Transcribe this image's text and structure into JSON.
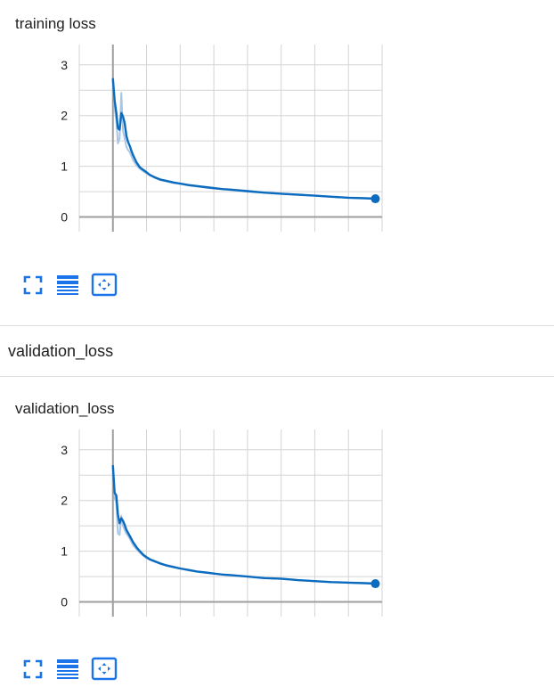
{
  "chart_data": [
    {
      "type": "line",
      "title": "training loss",
      "xlabel": "",
      "ylabel": "",
      "xlim": [
        -20,
        160
      ],
      "ylim": [
        -0.5,
        3.4
      ],
      "xticks": [
        0,
        20,
        40,
        60,
        80,
        100,
        120,
        140
      ],
      "yticks": [
        0,
        1,
        2,
        3
      ],
      "grid": true,
      "series": [
        {
          "role": "smoothed",
          "color": "#0b6bbf",
          "x": [
            0,
            1,
            2,
            3,
            4,
            5,
            6,
            7,
            8,
            9,
            10,
            11,
            12,
            14,
            16,
            18,
            20,
            22,
            25,
            28,
            32,
            36,
            40,
            45,
            50,
            55,
            60,
            65,
            70,
            80,
            90,
            100,
            110,
            120,
            130,
            140,
            150,
            156
          ],
          "y": [
            2.72,
            2.3,
            2.05,
            1.75,
            1.72,
            2.05,
            1.98,
            1.85,
            1.6,
            1.48,
            1.4,
            1.3,
            1.22,
            1.08,
            0.98,
            0.93,
            0.88,
            0.83,
            0.78,
            0.74,
            0.71,
            0.68,
            0.66,
            0.63,
            0.61,
            0.59,
            0.57,
            0.55,
            0.54,
            0.51,
            0.48,
            0.46,
            0.44,
            0.42,
            0.4,
            0.38,
            0.37,
            0.36
          ]
        },
        {
          "role": "raw",
          "color": "#a8c7e6",
          "x": [
            0,
            1,
            2,
            3,
            4,
            5,
            6,
            7,
            8,
            9,
            10,
            11,
            12,
            14,
            16,
            18,
            20,
            22,
            25,
            28,
            32,
            36,
            40,
            45,
            50,
            55,
            60,
            65,
            70,
            80,
            90,
            100,
            110,
            120,
            130,
            140,
            150,
            156
          ],
          "y": [
            2.65,
            2.15,
            1.9,
            1.45,
            1.55,
            2.45,
            1.7,
            1.55,
            1.38,
            1.32,
            1.28,
            1.2,
            1.12,
            1.02,
            0.95,
            0.9,
            0.86,
            0.82,
            0.77,
            0.73,
            0.7,
            0.67,
            0.65,
            0.62,
            0.6,
            0.58,
            0.56,
            0.55,
            0.53,
            0.5,
            0.48,
            0.46,
            0.44,
            0.42,
            0.4,
            0.38,
            0.37,
            0.36
          ]
        }
      ]
    },
    {
      "type": "line",
      "title": "validation_loss",
      "xlabel": "",
      "ylabel": "",
      "xlim": [
        -20,
        160
      ],
      "ylim": [
        -0.5,
        3.4
      ],
      "xticks": [
        0,
        20,
        40,
        60,
        80,
        100,
        120,
        140
      ],
      "yticks": [
        0,
        1,
        2,
        3
      ],
      "grid": true,
      "series": [
        {
          "role": "smoothed",
          "color": "#0b6bbf",
          "x": [
            0,
            1,
            2,
            3,
            4,
            5,
            6,
            7,
            8,
            9,
            10,
            12,
            14,
            16,
            18,
            20,
            22,
            25,
            28,
            32,
            36,
            40,
            45,
            50,
            55,
            60,
            65,
            70,
            80,
            90,
            100,
            110,
            120,
            130,
            140,
            150,
            156
          ],
          "y": [
            2.68,
            2.15,
            2.1,
            1.72,
            1.55,
            1.65,
            1.6,
            1.52,
            1.42,
            1.36,
            1.3,
            1.18,
            1.08,
            1.0,
            0.93,
            0.88,
            0.84,
            0.8,
            0.76,
            0.72,
            0.69,
            0.66,
            0.63,
            0.6,
            0.58,
            0.56,
            0.54,
            0.53,
            0.5,
            0.47,
            0.46,
            0.43,
            0.41,
            0.39,
            0.38,
            0.37,
            0.36
          ]
        },
        {
          "role": "raw",
          "color": "#a8c7e6",
          "x": [
            0,
            1,
            2,
            3,
            4,
            5,
            6,
            7,
            8,
            9,
            10,
            12,
            14,
            16,
            18,
            20,
            22,
            25,
            28,
            32,
            36,
            40,
            45,
            50,
            55,
            60,
            65,
            70,
            80,
            90,
            100,
            110,
            120,
            130,
            140,
            150,
            156
          ],
          "y": [
            2.6,
            2.05,
            1.95,
            1.35,
            1.32,
            1.7,
            1.5,
            1.42,
            1.35,
            1.3,
            1.25,
            1.12,
            1.04,
            0.97,
            0.91,
            0.86,
            0.83,
            0.79,
            0.75,
            0.71,
            0.68,
            0.66,
            0.62,
            0.6,
            0.58,
            0.56,
            0.54,
            0.52,
            0.5,
            0.47,
            0.45,
            0.43,
            0.41,
            0.39,
            0.38,
            0.37,
            0.36
          ]
        }
      ]
    }
  ],
  "sections": {
    "training": {
      "card_title": "training loss"
    },
    "validation": {
      "header": "validation_loss",
      "card_title": "validation_loss"
    }
  },
  "toolbar": {
    "icons": [
      "fullscreen-icon",
      "data-table-icon",
      "fit-domain-icon"
    ],
    "accent": "#1a73e8"
  }
}
